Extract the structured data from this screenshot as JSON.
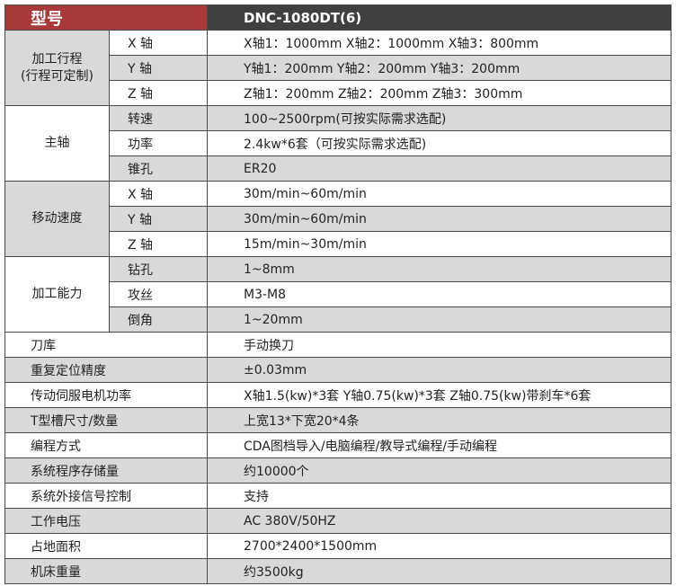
{
  "header": {
    "label": "型号",
    "model": "DNC-1080DT(6)"
  },
  "groups": [
    {
      "label": "加工行程\n(行程可定制)",
      "rows": [
        [
          "X 轴",
          "X轴1：1000mm  X轴2：1000mm  X轴3：800mm"
        ],
        [
          "Y 轴",
          "Y轴1：200mm  Y轴2：200mm  Y轴3：200mm"
        ],
        [
          "Z 轴",
          "Z轴1：200mm  Z轴2：200mm  Z轴3：300mm"
        ]
      ]
    },
    {
      "label": "主轴",
      "rows": [
        [
          "转速",
          "100~2500rpm(可按实际需求选配)"
        ],
        [
          "功率",
          "2.4kw*6套（可按实际需求选配)"
        ],
        [
          "锥孔",
          "ER20"
        ]
      ]
    },
    {
      "label": "移动速度",
      "rows": [
        [
          "X 轴",
          "30m/min~60m/min"
        ],
        [
          "Y 轴",
          "30m/min~60m/min"
        ],
        [
          "Z 轴",
          "15m/min~30m/min"
        ]
      ]
    },
    {
      "label": "加工能力",
      "rows": [
        [
          "钻孔",
          "1~8mm"
        ],
        [
          "攻丝",
          "M3-M8"
        ],
        [
          "倒角",
          "1~20mm"
        ]
      ]
    }
  ],
  "rows": [
    [
      "刀库",
      "手动换刀"
    ],
    [
      "重复定位精度",
      "±0.03mm"
    ],
    [
      "传动伺服电机功率",
      "X轴1.5(kw)*3套  Y轴0.75(kw)*3套  Z轴0.75(kw)带刹车*6套"
    ],
    [
      "T型槽尺寸/数量",
      "上宽13*下宽20*4条"
    ],
    [
      "编程方式",
      "CDA图档导入/电脑编程/教导式编程/手动编程"
    ],
    [
      "系统程序存储量",
      "约10000个"
    ],
    [
      "系统外接信号控制",
      "支持"
    ],
    [
      "工作电压",
      "AC 380V/50HZ"
    ],
    [
      "占地面积",
      "2700*2400*1500mm"
    ],
    [
      "机床重量",
      "约3500kg"
    ]
  ],
  "colors": {
    "header_red": "#a83a3a",
    "header_dark": "#404040",
    "stripe": "#d9d9d9"
  }
}
